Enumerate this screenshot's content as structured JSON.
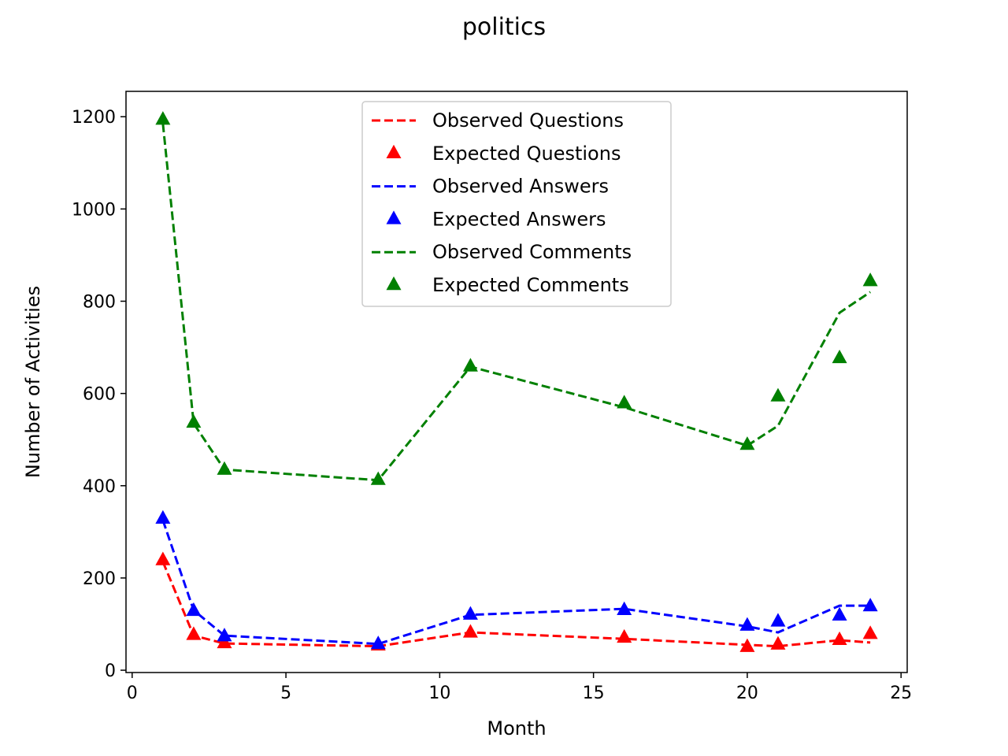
{
  "chart_data": {
    "type": "line",
    "title": "politics",
    "xlabel": "Month",
    "ylabel": "Number of Activities",
    "xlim": [
      -0.2,
      25.2
    ],
    "ylim": [
      -5,
      1255
    ],
    "xticks": [
      0,
      5,
      10,
      15,
      20,
      25
    ],
    "yticks": [
      0,
      200,
      400,
      600,
      800,
      1000,
      1200
    ],
    "grid": false,
    "legend_position": "top-center",
    "x": [
      1,
      2,
      3,
      8,
      11,
      16,
      20,
      21,
      23,
      24
    ],
    "series": [
      {
        "name": "Observed Questions",
        "kind": "line",
        "style": "dashed",
        "color": "#ff0000",
        "values": [
          235,
          75,
          58,
          52,
          82,
          68,
          55,
          52,
          65,
          60
        ]
      },
      {
        "name": "Expected Questions",
        "kind": "marker",
        "marker": "triangle",
        "color": "#ff0000",
        "values": [
          240,
          78,
          60,
          55,
          83,
          72,
          52,
          57,
          67,
          80
        ]
      },
      {
        "name": "Observed Answers",
        "kind": "line",
        "style": "dashed",
        "color": "#0000ff",
        "values": [
          325,
          130,
          75,
          57,
          120,
          133,
          95,
          82,
          140,
          140
        ]
      },
      {
        "name": "Expected Answers",
        "kind": "marker",
        "marker": "triangle",
        "color": "#0000ff",
        "values": [
          330,
          130,
          75,
          58,
          122,
          132,
          98,
          107,
          120,
          140
        ]
      },
      {
        "name": "Observed Comments",
        "kind": "line",
        "style": "dashed",
        "color": "#008000",
        "values": [
          1185,
          535,
          435,
          412,
          658,
          570,
          487,
          530,
          775,
          820
        ]
      },
      {
        "name": "Expected Comments",
        "kind": "marker",
        "marker": "triangle",
        "color": "#008000",
        "values": [
          1195,
          538,
          436,
          414,
          660,
          580,
          490,
          595,
          678,
          845
        ]
      }
    ]
  }
}
